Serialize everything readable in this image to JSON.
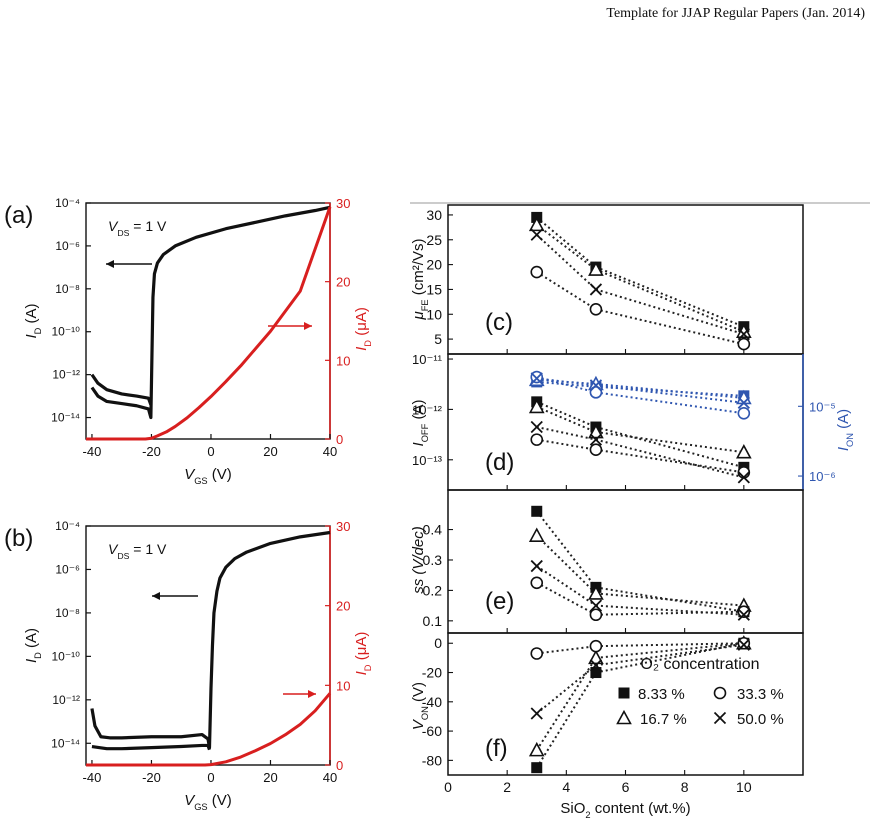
{
  "header": {
    "text": "Template for JJAP Regular Papers (Jan. 2014)"
  },
  "panel_labels": {
    "a": "(a)",
    "b": "(b)",
    "c": "(c)",
    "d": "(d)",
    "e": "(e)",
    "f": "(f)"
  },
  "legend": {
    "title": "O₂ concentration",
    "entries": [
      "8.33 %",
      "16.7 %",
      "33.3 %",
      "50.0 %"
    ]
  },
  "chart_data": [
    {
      "id": "a",
      "type": "line",
      "annotation": "V_DS = 1 V",
      "xlabel": "V_GS (V)",
      "xlim": [
        -42,
        40
      ],
      "xticks": [
        "-40",
        "-20",
        "0",
        "20",
        "40"
      ],
      "ylabel_left": "I_D (A)",
      "log_left": true,
      "ylim_left_exp": [
        -15,
        -4
      ],
      "yticks_left": [
        "10⁻⁴",
        "10⁻⁶",
        "10⁻⁸",
        "10⁻¹⁰",
        "10⁻¹²",
        "10⁻¹⁴"
      ],
      "ylabel_right": "I_D (μA)",
      "ylim_right": [
        0,
        30
      ],
      "yticks_right": [
        "0",
        "10",
        "20",
        "30"
      ],
      "series": [
        {
          "axis": "left_log",
          "color": "#111111",
          "x": [
            -40,
            -38,
            -35,
            -30,
            -25,
            -21,
            -20.2,
            -19.5,
            -19,
            -18,
            -16,
            -12,
            -5,
            5,
            15,
            25,
            35,
            40
          ],
          "y_exp": [
            -12.6,
            -13.0,
            -13.25,
            -13.35,
            -13.45,
            -13.6,
            -14.0,
            -8.4,
            -7.3,
            -6.8,
            -6.4,
            -6.0,
            -5.6,
            -5.2,
            -4.9,
            -4.6,
            -4.35,
            -4.2
          ]
        },
        {
          "axis": "left_log",
          "color": "#111111",
          "x": [
            -40,
            -38,
            -35,
            -30,
            -25,
            -21,
            -20.2
          ],
          "y_exp": [
            -12.0,
            -12.4,
            -12.7,
            -12.9,
            -13.0,
            -13.1,
            -13.4
          ]
        },
        {
          "axis": "right",
          "color": "#d81f1f",
          "x": [
            -42,
            -22,
            -20,
            -18,
            -15,
            -12,
            -8,
            -4,
            0,
            5,
            10,
            20,
            30,
            40
          ],
          "y": [
            0,
            0,
            0.1,
            0.4,
            0.9,
            1.6,
            2.7,
            4.0,
            5.4,
            7.3,
            9.3,
            13.7,
            18.8,
            29.5
          ]
        }
      ]
    },
    {
      "id": "b",
      "type": "line",
      "annotation": "V_DS = 1 V",
      "xlabel": "V_GS (V)",
      "xlim": [
        -42,
        40
      ],
      "xticks": [
        "-40",
        "-20",
        "0",
        "20",
        "40"
      ],
      "ylabel_left": "I_D (A)",
      "log_left": true,
      "ylim_left_exp": [
        -15,
        -4
      ],
      "yticks_left": [
        "10⁻⁴",
        "10⁻⁶",
        "10⁻⁸",
        "10⁻¹⁰",
        "10⁻¹²",
        "10⁻¹⁴"
      ],
      "ylabel_right": "I_D (μA)",
      "ylim_right": [
        0,
        30
      ],
      "yticks_right": [
        "0",
        "10",
        "20",
        "30"
      ],
      "series": [
        {
          "axis": "left_log",
          "color": "#111111",
          "x": [
            -40,
            -39,
            -37,
            -34,
            -30,
            -20,
            -10,
            -3,
            -1,
            -0.5,
            0,
            0.5,
            1,
            2,
            3,
            5,
            8,
            12,
            20,
            30,
            40
          ],
          "y_exp": [
            -12.4,
            -13.2,
            -13.7,
            -13.75,
            -13.75,
            -13.7,
            -13.7,
            -13.6,
            -13.8,
            -14.2,
            -11.5,
            -9.5,
            -8.0,
            -7.0,
            -6.4,
            -5.9,
            -5.5,
            -5.2,
            -4.8,
            -4.5,
            -4.3
          ]
        },
        {
          "axis": "left_log",
          "color": "#111111",
          "x": [
            -40,
            -35,
            -30,
            -20,
            -10,
            -3,
            -1,
            -0.5
          ],
          "y_exp": [
            -14.15,
            -14.25,
            -14.25,
            -14.2,
            -14.15,
            -14.1,
            -14.1,
            -14.3
          ]
        },
        {
          "axis": "right",
          "color": "#d81f1f",
          "x": [
            -42,
            -2,
            0,
            5,
            10,
            15,
            20,
            25,
            30,
            35,
            40
          ],
          "y": [
            0,
            0,
            0.05,
            0.4,
            1.0,
            1.8,
            2.7,
            3.8,
            5.1,
            6.8,
            9.0
          ]
        }
      ]
    },
    {
      "id": "c",
      "type": "scatter",
      "ylabel": "μ_FE (cm²/Vs)",
      "xlim": [
        0,
        12
      ],
      "ylim": [
        2,
        32
      ],
      "yticks": [
        "5",
        "10",
        "15",
        "20",
        "25",
        "30"
      ],
      "x": [
        3,
        5,
        10
      ],
      "series": [
        {
          "marker": "filled-square",
          "values": [
            29.5,
            19.5,
            7.5
          ]
        },
        {
          "marker": "open-triangle",
          "values": [
            28,
            19,
            6.5
          ]
        },
        {
          "marker": "open-circle",
          "values": [
            18.5,
            11,
            4
          ]
        },
        {
          "marker": "cross",
          "values": [
            26,
            15,
            6
          ]
        }
      ]
    },
    {
      "id": "d",
      "type": "scatter",
      "ylabel": "I_OFF (A)",
      "ylabel_right": "I_ON (A)",
      "log_left": true,
      "ylim_left_exp": [
        -13.6,
        -10.9
      ],
      "yticks_left": [
        "10⁻¹¹",
        "10⁻¹²",
        "10⁻¹³"
      ],
      "log_right": true,
      "ylim_right_exp": [
        -6.2,
        -4.25
      ],
      "yticks_right": [
        "10⁻⁵",
        "10⁻⁶"
      ],
      "x": [
        3,
        5,
        10
      ],
      "series_off_exp": [
        {
          "marker": "filled-square",
          "values": [
            -11.85,
            -12.35,
            -13.15
          ]
        },
        {
          "marker": "open-triangle",
          "values": [
            -11.95,
            -12.45,
            -12.85
          ]
        },
        {
          "marker": "open-circle",
          "values": [
            -12.6,
            -12.8,
            -13.25
          ]
        },
        {
          "marker": "cross",
          "values": [
            -12.35,
            -12.6,
            -13.35
          ]
        }
      ],
      "series_on_exp": [
        {
          "marker": "filled-square",
          "values": [
            -4.65,
            -4.72,
            -4.85
          ]
        },
        {
          "marker": "open-triangle",
          "values": [
            -4.62,
            -4.68,
            -4.88
          ]
        },
        {
          "marker": "open-circle",
          "values": [
            -4.58,
            -4.8,
            -5.1
          ]
        },
        {
          "marker": "cross",
          "values": [
            -4.6,
            -4.7,
            -4.95
          ]
        }
      ]
    },
    {
      "id": "e",
      "type": "scatter",
      "ylabel": "ss (V/dec)",
      "ylim": [
        0.06,
        0.53
      ],
      "yticks": [
        "0.1",
        "0.2",
        "0.3",
        "0.4"
      ],
      "x": [
        3,
        5,
        10
      ],
      "series": [
        {
          "marker": "filled-square",
          "values": [
            0.46,
            0.21,
            0.13
          ]
        },
        {
          "marker": "open-triangle",
          "values": [
            0.38,
            0.19,
            0.15
          ]
        },
        {
          "marker": "open-circle",
          "values": [
            0.225,
            0.12,
            0.13
          ]
        },
        {
          "marker": "cross",
          "values": [
            0.28,
            0.15,
            0.12
          ]
        }
      ]
    },
    {
      "id": "f",
      "type": "scatter",
      "ylabel": "V_ON (V)",
      "xlabel": "SiO₂ content (wt.%)",
      "xlim": [
        0,
        12
      ],
      "xticks": [
        "0",
        "2",
        "4",
        "6",
        "8",
        "10"
      ],
      "ylim": [
        -90,
        7
      ],
      "yticks": [
        "0",
        "-20",
        "-40",
        "-60",
        "-80"
      ],
      "x": [
        3,
        5,
        10
      ],
      "series": [
        {
          "marker": "filled-square",
          "values": [
            -85,
            -20,
            0
          ]
        },
        {
          "marker": "open-triangle",
          "values": [
            -73,
            -10,
            0
          ]
        },
        {
          "marker": "open-circle",
          "values": [
            -7,
            -2,
            0
          ]
        },
        {
          "marker": "cross",
          "values": [
            -48,
            -15,
            -1
          ]
        }
      ]
    }
  ]
}
